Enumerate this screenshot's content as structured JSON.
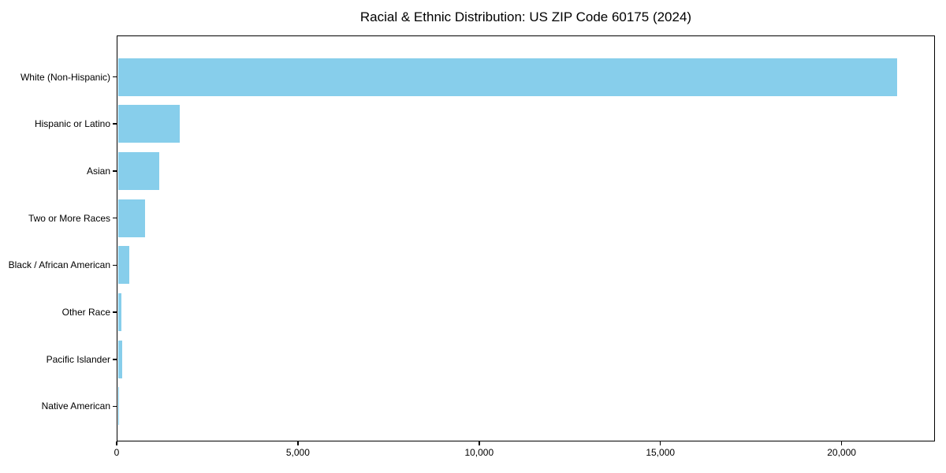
{
  "chart_data": {
    "type": "bar",
    "orientation": "horizontal",
    "title": "Racial & Ethnic Distribution: US ZIP Code 60175 (2024)",
    "categories": [
      "White (Non-Hispanic)",
      "Hispanic or Latino",
      "Asian",
      "Two or More Races",
      "Black / African American",
      "Other Race",
      "Pacific Islander",
      "Native American"
    ],
    "values": [
      21500,
      1700,
      1150,
      740,
      320,
      90,
      110,
      10
    ],
    "bar_color": "#87CEEB",
    "title_color": "#000000",
    "axis_color": "#000000",
    "xlabel": "",
    "ylabel": "",
    "xlim": [
      0,
      22575
    ],
    "xtick_values": [
      0,
      5000,
      10000,
      15000,
      20000
    ],
    "xtick_labels": [
      "0",
      "5,000",
      "10,000",
      "15,000",
      "20,000"
    ],
    "grid": false,
    "legend": null
  }
}
